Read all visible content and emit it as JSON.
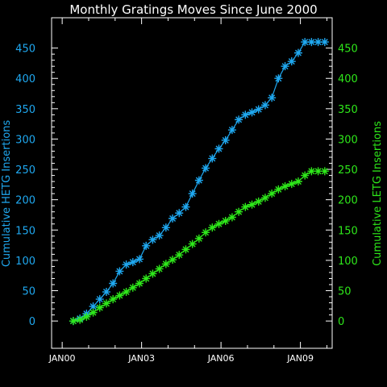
{
  "chart_data": {
    "type": "line",
    "title": "Monthly Gratings Moves Since June 2000",
    "ylabel_left": "Cumulative HETG Insertions",
    "ylabel_right": "Cumulative LETG Insertions",
    "xlabel": "",
    "x_tick_labels": [
      "JAN00",
      "JAN03",
      "JAN06",
      "JAN09"
    ],
    "x_ticks_year": [
      2000,
      2003,
      2006,
      2009
    ],
    "xlim": [
      1999.6,
      2010.2
    ],
    "ylim": [
      -45,
      500
    ],
    "y_tick_labels": [
      "0",
      "50",
      "100",
      "150",
      "200",
      "250",
      "300",
      "350",
      "400",
      "450"
    ],
    "y_ticks": [
      0,
      50,
      100,
      150,
      200,
      250,
      300,
      350,
      400,
      450
    ],
    "grid": false,
    "series": [
      {
        "name": "",
        "color": "#1fa8f0",
        "marker": "asterisk",
        "x": [
          2000.42,
          2000.67,
          2000.92,
          2001.17,
          2001.42,
          2001.67,
          2001.92,
          2002.17,
          2002.42,
          2002.67,
          2002.92,
          2003.17,
          2003.42,
          2003.67,
          2003.92,
          2004.17,
          2004.42,
          2004.67,
          2004.92,
          2005.17,
          2005.42,
          2005.67,
          2005.92,
          2006.17,
          2006.42,
          2006.67,
          2006.92,
          2007.17,
          2007.42,
          2007.67,
          2007.92,
          2008.17,
          2008.42,
          2008.67,
          2008.92,
          2009.17,
          2009.42,
          2009.67,
          2009.92
        ],
        "values": [
          0,
          4,
          12,
          24,
          36,
          48,
          62,
          82,
          93,
          97,
          102,
          124,
          134,
          141,
          154,
          169,
          178,
          188,
          210,
          232,
          252,
          268,
          284,
          298,
          315,
          332,
          340,
          344,
          349,
          356,
          368,
          400,
          420,
          428,
          442,
          460,
          460,
          460,
          460
        ]
      },
      {
        "name": "",
        "color": "#2ee81a",
        "marker": "asterisk",
        "x": [
          2000.42,
          2000.67,
          2000.92,
          2001.17,
          2001.42,
          2001.67,
          2001.92,
          2002.17,
          2002.42,
          2002.67,
          2002.92,
          2003.17,
          2003.42,
          2003.67,
          2003.92,
          2004.17,
          2004.42,
          2004.67,
          2004.92,
          2005.17,
          2005.42,
          2005.67,
          2005.92,
          2006.17,
          2006.42,
          2006.67,
          2006.92,
          2007.17,
          2007.42,
          2007.67,
          2007.92,
          2008.17,
          2008.42,
          2008.67,
          2008.92,
          2009.17,
          2009.42,
          2009.67,
          2009.92
        ],
        "values": [
          0,
          2,
          7,
          14,
          22,
          29,
          36,
          42,
          48,
          55,
          62,
          70,
          78,
          86,
          94,
          101,
          109,
          118,
          127,
          136,
          146,
          154,
          160,
          165,
          171,
          180,
          188,
          192,
          197,
          203,
          210,
          217,
          222,
          226,
          230,
          240,
          247,
          247,
          247
        ]
      }
    ]
  }
}
